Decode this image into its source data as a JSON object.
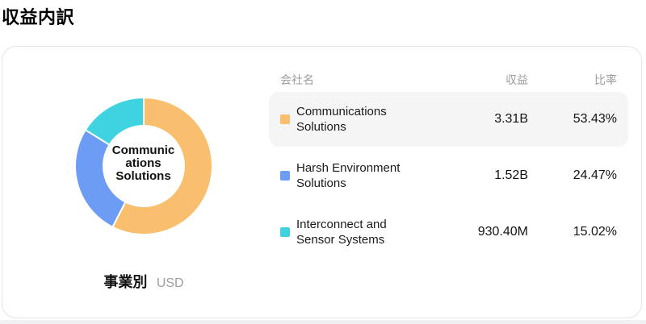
{
  "page": {
    "title": "収益内訳"
  },
  "card": {
    "chart": {
      "center_label": "Communications Solutions",
      "footer": {
        "label": "事業別",
        "unit": "USD"
      }
    },
    "table": {
      "headers": {
        "name": "会社名",
        "revenue": "収益",
        "ratio": "比率"
      },
      "rows": [
        {
          "name": "Communications Solutions",
          "revenue": "3.31B",
          "ratio": "53.43%",
          "color": "#F9BE6E",
          "highlighted": true
        },
        {
          "name": "Harsh Environment Solutions",
          "revenue": "1.52B",
          "ratio": "24.47%",
          "color": "#6C9CF4",
          "highlighted": false
        },
        {
          "name": "Interconnect and Sensor Systems",
          "revenue": "930.40M",
          "ratio": "15.02%",
          "color": "#3FD3E2",
          "highlighted": false
        }
      ]
    }
  },
  "chart_data": {
    "type": "pie",
    "title": "収益内訳",
    "donut": true,
    "categories": [
      "Communications Solutions",
      "Harsh Environment Solutions",
      "Interconnect and Sensor Systems"
    ],
    "values_pct": [
      53.43,
      24.47,
      15.02
    ],
    "values_revenue": [
      "3.31B",
      "1.52B",
      "930.40M"
    ],
    "colors": [
      "#F9BE6E",
      "#6C9CF4",
      "#3FD3E2"
    ],
    "center_label": "Communications Solutions",
    "unit": "USD",
    "group_by": "事業別",
    "legend_position": "right-table",
    "start_angle_deg": 0,
    "segment_gap_color": "#ffffff"
  }
}
